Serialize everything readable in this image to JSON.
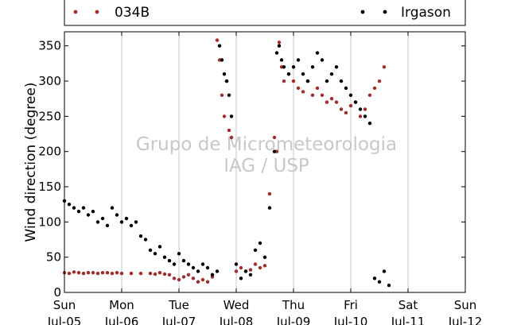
{
  "chart_data": {
    "type": "scatter",
    "ylabel": "Wind direction (degree)",
    "ylim": [
      0,
      370
    ],
    "yticks": [
      0,
      50,
      100,
      150,
      200,
      250,
      300,
      350
    ],
    "xlim": [
      "2015-07-05",
      "2015-07-12"
    ],
    "xticks": [
      {
        "day": "Sun",
        "date": "Jul-05"
      },
      {
        "day": "Mon",
        "date": "Jul-06"
      },
      {
        "day": "Tue",
        "date": "Jul-07"
      },
      {
        "day": "Wed",
        "date": "Jul-08"
      },
      {
        "day": "Thu",
        "date": "Jul-09"
      },
      {
        "day": "Fri",
        "date": "Jul-10"
      },
      {
        "day": "Sat",
        "date": "Jul-11"
      },
      {
        "day": "Sun",
        "date": "Jul-12"
      }
    ],
    "grid": "vertical",
    "legend_position": "top",
    "watermark": [
      "Grupo de Micrometeorologia",
      "IAG / USP"
    ],
    "series": [
      {
        "name": "034B",
        "color": "#a52a2a",
        "x": [
          "2015-07-05T00:00",
          "2015-07-05T02:00",
          "2015-07-05T04:00",
          "2015-07-05T06:00",
          "2015-07-05T08:00",
          "2015-07-05T10:00",
          "2015-07-05T12:00",
          "2015-07-05T14:00",
          "2015-07-05T16:00",
          "2015-07-05T18:00",
          "2015-07-05T20:00",
          "2015-07-05T22:00",
          "2015-07-06T00:00",
          "2015-07-06T04:00",
          "2015-07-06T08:00",
          "2015-07-06T12:00",
          "2015-07-06T14:00",
          "2015-07-06T16:00",
          "2015-07-06T18:00",
          "2015-07-06T20:00",
          "2015-07-06T22:00",
          "2015-07-07T00:00",
          "2015-07-07T02:00",
          "2015-07-07T04:00",
          "2015-07-07T06:00",
          "2015-07-07T08:00",
          "2015-07-07T10:00",
          "2015-07-07T12:00",
          "2015-07-07T14:00",
          "2015-07-07T16:00",
          "2015-07-07T17:00",
          "2015-07-07T18:00",
          "2015-07-07T19:00",
          "2015-07-07T20:00",
          "2015-07-07T21:00",
          "2015-07-07T22:00",
          "2015-07-08T00:00",
          "2015-07-08T02:00",
          "2015-07-08T04:00",
          "2015-07-08T06:00",
          "2015-07-08T08:00",
          "2015-07-08T10:00",
          "2015-07-08T12:00",
          "2015-07-08T14:00",
          "2015-07-08T16:00",
          "2015-07-08T17:00",
          "2015-07-08T18:00",
          "2015-07-08T19:00",
          "2015-07-08T20:00",
          "2015-07-08T22:00",
          "2015-07-09T00:00",
          "2015-07-09T02:00",
          "2015-07-09T04:00",
          "2015-07-09T06:00",
          "2015-07-09T08:00",
          "2015-07-09T10:00",
          "2015-07-09T12:00",
          "2015-07-09T14:00",
          "2015-07-09T16:00",
          "2015-07-09T18:00",
          "2015-07-09T20:00",
          "2015-07-09T22:00",
          "2015-07-10T00:00",
          "2015-07-10T02:00",
          "2015-07-10T04:00",
          "2015-07-10T06:00",
          "2015-07-10T08:00",
          "2015-07-10T10:00",
          "2015-07-10T12:00",
          "2015-07-10T14:00"
        ],
        "y": [
          28,
          27,
          29,
          28,
          27,
          28,
          28,
          27,
          28,
          28,
          27,
          28,
          27,
          27,
          27,
          27,
          26,
          28,
          26,
          25,
          20,
          18,
          22,
          25,
          20,
          15,
          18,
          15,
          22,
          358,
          330,
          280,
          250,
          300,
          230,
          220,
          30,
          35,
          30,
          32,
          40,
          35,
          38,
          140,
          220,
          200,
          355,
          320,
          300,
          310,
          300,
          290,
          285,
          300,
          280,
          290,
          280,
          270,
          275,
          270,
          260,
          255,
          265,
          270,
          250,
          260,
          280,
          290,
          300,
          320
        ]
      },
      {
        "name": "Irgason",
        "color": "#000000",
        "x": [
          "2015-07-05T00:00",
          "2015-07-05T02:00",
          "2015-07-05T04:00",
          "2015-07-05T06:00",
          "2015-07-05T08:00",
          "2015-07-05T10:00",
          "2015-07-05T12:00",
          "2015-07-05T14:00",
          "2015-07-05T16:00",
          "2015-07-05T18:00",
          "2015-07-05T20:00",
          "2015-07-05T22:00",
          "2015-07-06T00:00",
          "2015-07-06T02:00",
          "2015-07-06T04:00",
          "2015-07-06T06:00",
          "2015-07-06T08:00",
          "2015-07-06T10:00",
          "2015-07-06T12:00",
          "2015-07-06T14:00",
          "2015-07-06T16:00",
          "2015-07-06T18:00",
          "2015-07-06T20:00",
          "2015-07-06T22:00",
          "2015-07-07T00:00",
          "2015-07-07T02:00",
          "2015-07-07T04:00",
          "2015-07-07T06:00",
          "2015-07-07T08:00",
          "2015-07-07T10:00",
          "2015-07-07T12:00",
          "2015-07-07T14:00",
          "2015-07-07T16:00",
          "2015-07-07T17:00",
          "2015-07-07T18:00",
          "2015-07-07T19:00",
          "2015-07-07T20:00",
          "2015-07-07T21:00",
          "2015-07-07T22:00",
          "2015-07-08T00:00",
          "2015-07-08T02:00",
          "2015-07-08T04:00",
          "2015-07-08T06:00",
          "2015-07-08T08:00",
          "2015-07-08T10:00",
          "2015-07-08T12:00",
          "2015-07-08T14:00",
          "2015-07-08T16:00",
          "2015-07-08T17:00",
          "2015-07-08T18:00",
          "2015-07-08T19:00",
          "2015-07-08T20:00",
          "2015-07-08T22:00",
          "2015-07-09T00:00",
          "2015-07-09T02:00",
          "2015-07-09T04:00",
          "2015-07-09T06:00",
          "2015-07-09T08:00",
          "2015-07-09T10:00",
          "2015-07-09T12:00",
          "2015-07-09T14:00",
          "2015-07-09T16:00",
          "2015-07-09T18:00",
          "2015-07-09T20:00",
          "2015-07-09T22:00",
          "2015-07-10T00:00",
          "2015-07-10T02:00",
          "2015-07-10T04:00",
          "2015-07-10T06:00",
          "2015-07-10T08:00",
          "2015-07-10T10:00",
          "2015-07-10T12:00",
          "2015-07-10T14:00",
          "2015-07-10T16:00"
        ],
        "y": [
          130,
          125,
          120,
          115,
          120,
          110,
          115,
          100,
          105,
          95,
          120,
          110,
          100,
          105,
          95,
          100,
          80,
          75,
          60,
          55,
          65,
          50,
          45,
          40,
          55,
          45,
          40,
          35,
          30,
          40,
          35,
          25,
          30,
          350,
          330,
          310,
          300,
          280,
          250,
          40,
          20,
          30,
          25,
          60,
          70,
          50,
          120,
          200,
          340,
          350,
          330,
          320,
          310,
          320,
          330,
          310,
          300,
          320,
          340,
          330,
          300,
          310,
          320,
          300,
          290,
          280,
          270,
          260,
          250,
          240,
          20,
          15,
          30,
          10
        ]
      }
    ]
  }
}
